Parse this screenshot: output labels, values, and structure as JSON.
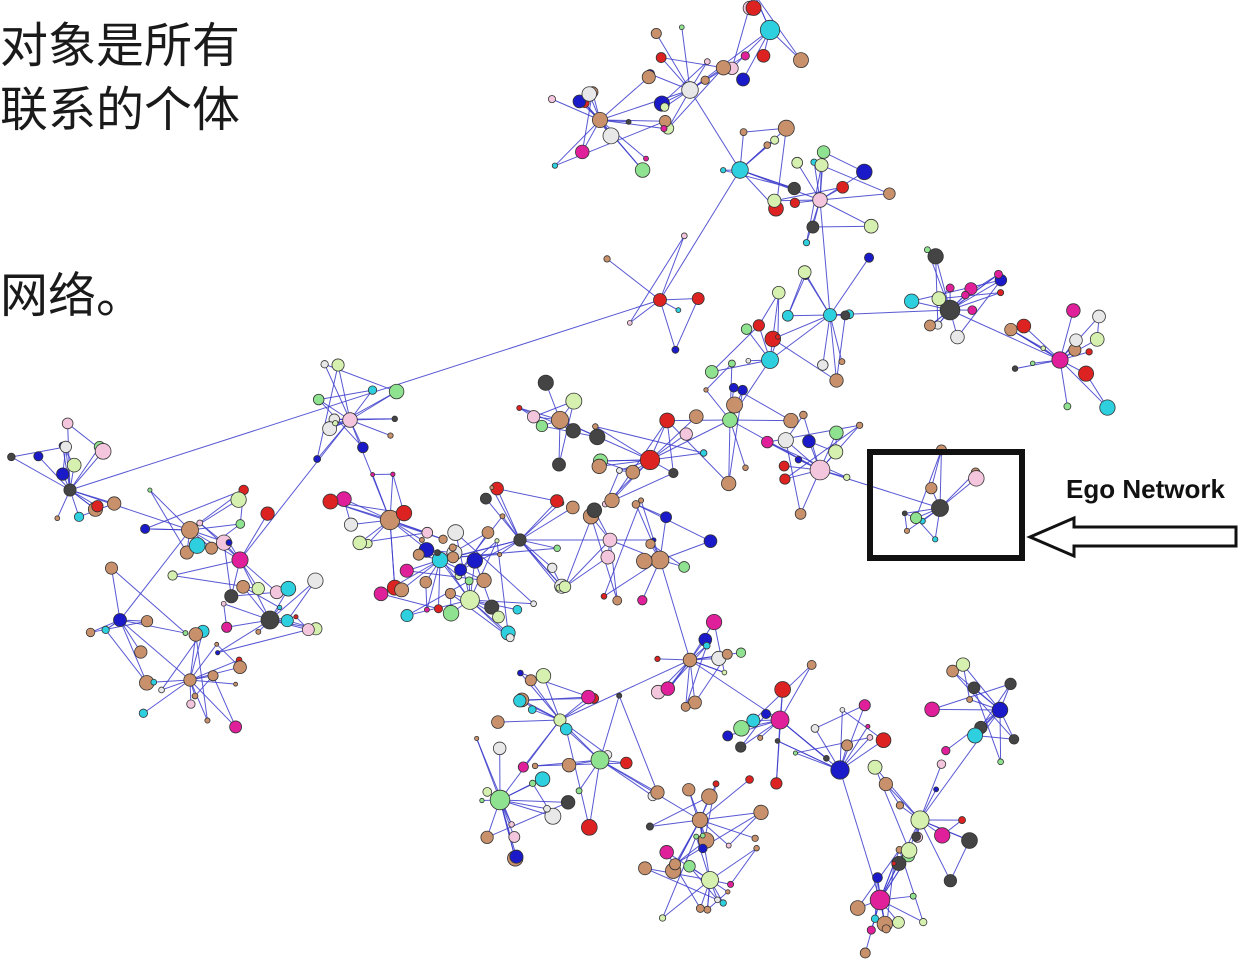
{
  "text_lines": [
    "对象是所有",
    "联系的个体",
    "网络。"
  ],
  "annotation": {
    "label": "Ego Network"
  },
  "colors": {
    "edge": "#3b3bcc",
    "main_node": "#c9916b",
    "highlight_box": "#111111"
  }
}
